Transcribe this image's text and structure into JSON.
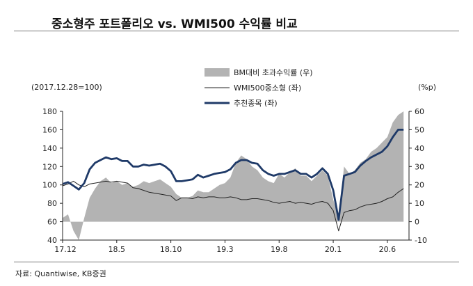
{
  "title": "중소형주 포트폴리오 vs. WMI500 수익률 비교",
  "source": "자료: Quantiwise, KB증권",
  "chart_data": {
    "type": "line",
    "base_note": "(2017.12.28=100)",
    "right_unit": "(%p)",
    "x_tick_labels": [
      "17.12",
      "18.5",
      "18.10",
      "19.3",
      "19.8",
      "20.1",
      "20.6"
    ],
    "x_tick_positions": [
      0,
      5,
      10,
      15,
      20,
      25,
      30
    ],
    "xlim": [
      0,
      32
    ],
    "y_left": {
      "lim": [
        40,
        180
      ],
      "ticks": [
        40,
        60,
        80,
        100,
        120,
        140,
        160,
        180
      ]
    },
    "y_right": {
      "lim": [
        -10,
        60
      ],
      "ticks": [
        -10,
        0,
        10,
        20,
        30,
        40,
        50,
        60
      ]
    },
    "legend": [
      {
        "name": "BM대비 초과수익률 (우)",
        "color": "#b3b3b3",
        "kind": "area"
      },
      {
        "name": "WMI500중소형 (좌)",
        "color": "#222222",
        "kind": "thin-line"
      },
      {
        "name": "추천종목 (좌)",
        "color": "#1f3a68",
        "kind": "thick-line"
      }
    ],
    "series": [
      {
        "name": "BM대비 초과수익률 (우)",
        "axis": "right",
        "style": "area",
        "color": "#b3b3b3",
        "x": [
          0,
          0.5,
          1,
          1.5,
          2,
          2.5,
          3,
          3.5,
          4,
          4.5,
          5,
          5.5,
          6,
          6.5,
          7,
          7.5,
          8,
          8.5,
          9,
          9.5,
          10,
          10.5,
          11,
          11.5,
          12,
          12.5,
          13,
          13.5,
          14,
          14.5,
          15,
          15.5,
          16,
          16.5,
          17,
          17.5,
          18,
          18.5,
          19,
          19.5,
          20,
          20.5,
          21,
          21.5,
          22,
          22.5,
          23,
          23.5,
          24,
          24.5,
          25,
          25.5,
          26,
          26.5,
          27,
          27.5,
          28,
          28.5,
          29,
          29.5,
          30,
          30.5,
          31,
          31.5
        ],
        "values": [
          2,
          4,
          -5,
          -10,
          2,
          13,
          18,
          22,
          24,
          21,
          22,
          20,
          21,
          19,
          20,
          22,
          21,
          22,
          23,
          21,
          19,
          15,
          13,
          13,
          14,
          17,
          16,
          16,
          18,
          20,
          21,
          24,
          32,
          36,
          34,
          30,
          28,
          24,
          22,
          21,
          26,
          24,
          27,
          29,
          25,
          25,
          22,
          25,
          28,
          25,
          12,
          2,
          30,
          26,
          28,
          32,
          34,
          38,
          40,
          43,
          46,
          54,
          58,
          60
        ]
      },
      {
        "name": "WMI500중소형 (좌)",
        "axis": "left",
        "style": "thin-line",
        "color": "#222222",
        "x": [
          0,
          0.5,
          1,
          1.5,
          2,
          2.5,
          3,
          3.5,
          4,
          4.5,
          5,
          5.5,
          6,
          6.5,
          7,
          7.5,
          8,
          8.5,
          9,
          9.5,
          10,
          10.5,
          11,
          11.5,
          12,
          12.5,
          13,
          13.5,
          14,
          14.5,
          15,
          15.5,
          16,
          16.5,
          17,
          17.5,
          18,
          18.5,
          19,
          19.5,
          20,
          20.5,
          21,
          21.5,
          22,
          22.5,
          23,
          23.5,
          24,
          24.5,
          25,
          25.5,
          26,
          26.5,
          27,
          27.5,
          28,
          28.5,
          29,
          29.5,
          30,
          30.5,
          31,
          31.5
        ],
        "values": [
          99,
          101,
          104,
          100,
          98,
          101,
          102,
          103,
          104,
          103,
          104,
          103,
          102,
          97,
          96,
          94,
          92,
          91,
          90,
          89,
          88,
          83,
          86,
          86,
          85,
          87,
          86,
          87,
          87,
          86,
          86,
          87,
          86,
          84,
          84,
          85,
          85,
          84,
          83,
          81,
          80,
          81,
          82,
          80,
          81,
          80,
          79,
          81,
          82,
          80,
          72,
          50,
          70,
          72,
          73,
          76,
          78,
          79,
          80,
          82,
          85,
          87,
          92,
          96
        ]
      },
      {
        "name": "추천종목 (좌)",
        "axis": "left",
        "style": "thick-line",
        "color": "#1f3a68",
        "x": [
          0,
          0.5,
          1,
          1.5,
          2,
          2.5,
          3,
          3.5,
          4,
          4.5,
          5,
          5.5,
          6,
          6.5,
          7,
          7.5,
          8,
          8.5,
          9,
          9.5,
          10,
          10.5,
          11,
          11.5,
          12,
          12.5,
          13,
          13.5,
          14,
          14.5,
          15,
          15.5,
          16,
          16.5,
          17,
          17.5,
          18,
          18.5,
          19,
          19.5,
          20,
          20.5,
          21,
          21.5,
          22,
          22.5,
          23,
          23.5,
          24,
          24.5,
          25,
          25.5,
          26,
          26.5,
          27,
          27.5,
          28,
          28.5,
          29,
          29.5,
          30,
          30.5,
          31,
          31.5
        ],
        "values": [
          101,
          103,
          99,
          95,
          102,
          117,
          124,
          127,
          130,
          128,
          129,
          126,
          126,
          120,
          120,
          122,
          121,
          122,
          123,
          120,
          115,
          104,
          104,
          105,
          106,
          111,
          108,
          110,
          112,
          113,
          114,
          117,
          124,
          127,
          127,
          124,
          123,
          116,
          112,
          110,
          112,
          112,
          114,
          116,
          112,
          112,
          108,
          112,
          118,
          112,
          94,
          62,
          110,
          112,
          114,
          121,
          126,
          130,
          133,
          136,
          142,
          152,
          160,
          160
        ]
      }
    ]
  }
}
